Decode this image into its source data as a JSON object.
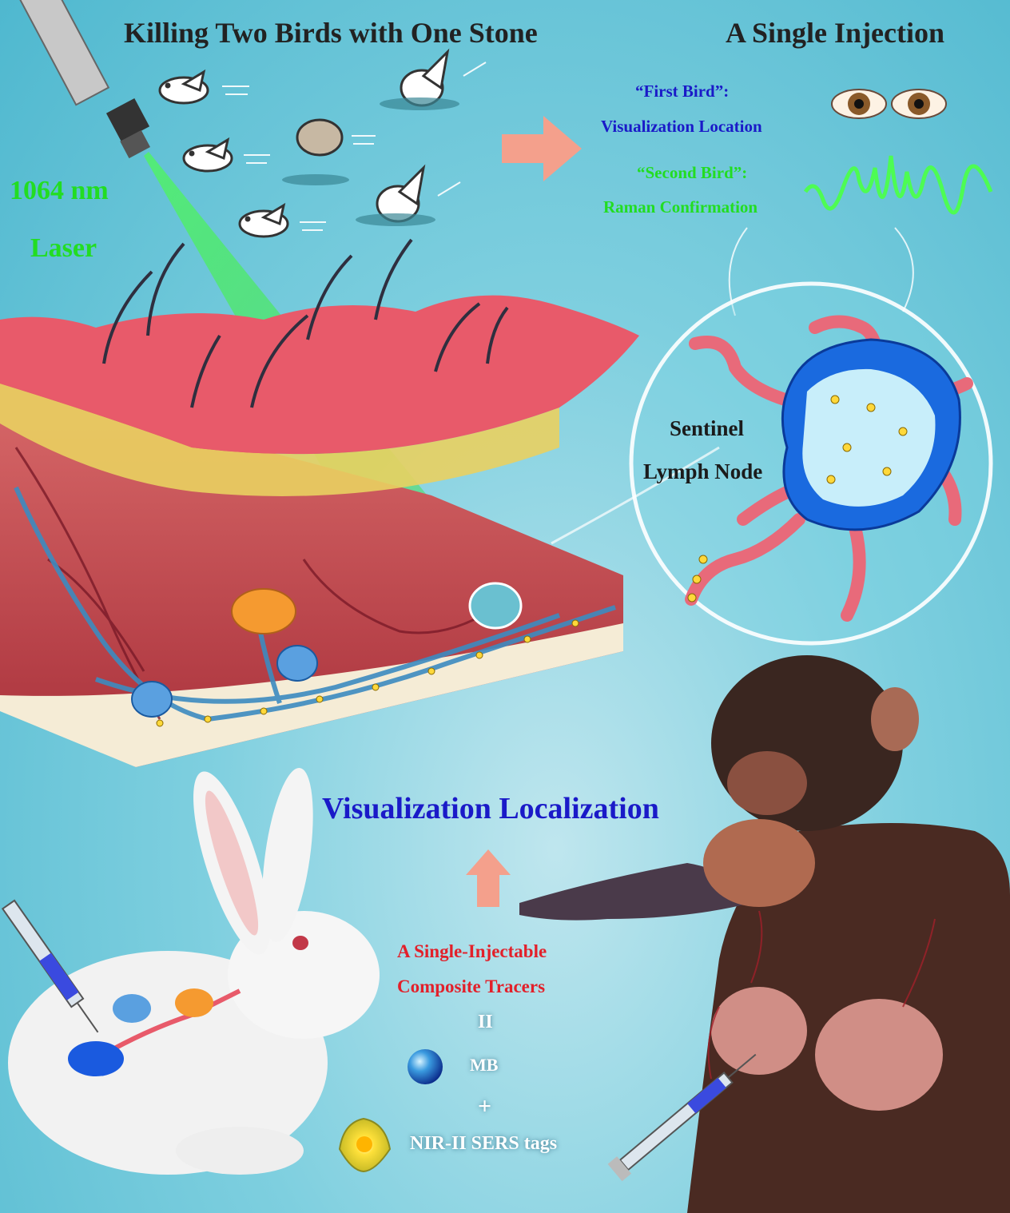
{
  "header": {
    "left_title": "Killing Two Birds with One Stone",
    "right_title": "A Single Injection"
  },
  "laser": {
    "line1": "1064 nm",
    "line2": "Laser"
  },
  "birds": {
    "first_label": "“First Bird”:",
    "first_desc": "Visualization Location",
    "second_label": "“Second Bird”:",
    "second_desc": "Raman Confirmation"
  },
  "node": {
    "line1": "Sentinel",
    "line2": "Lymph Node"
  },
  "bottom": {
    "viz": "Visualization Localization",
    "tracer_line1": "A Single-Injectable",
    "tracer_line2": "Composite Tracers",
    "equals": "II",
    "mb": "MB",
    "plus": "+",
    "sers": "NIR-II SERS tags"
  },
  "colors": {
    "blue_text": "#1a1ac8",
    "green_text": "#22dd22",
    "red_text": "#e2202a",
    "skin": "#e85a6a",
    "arrow": "#f4a08c"
  }
}
